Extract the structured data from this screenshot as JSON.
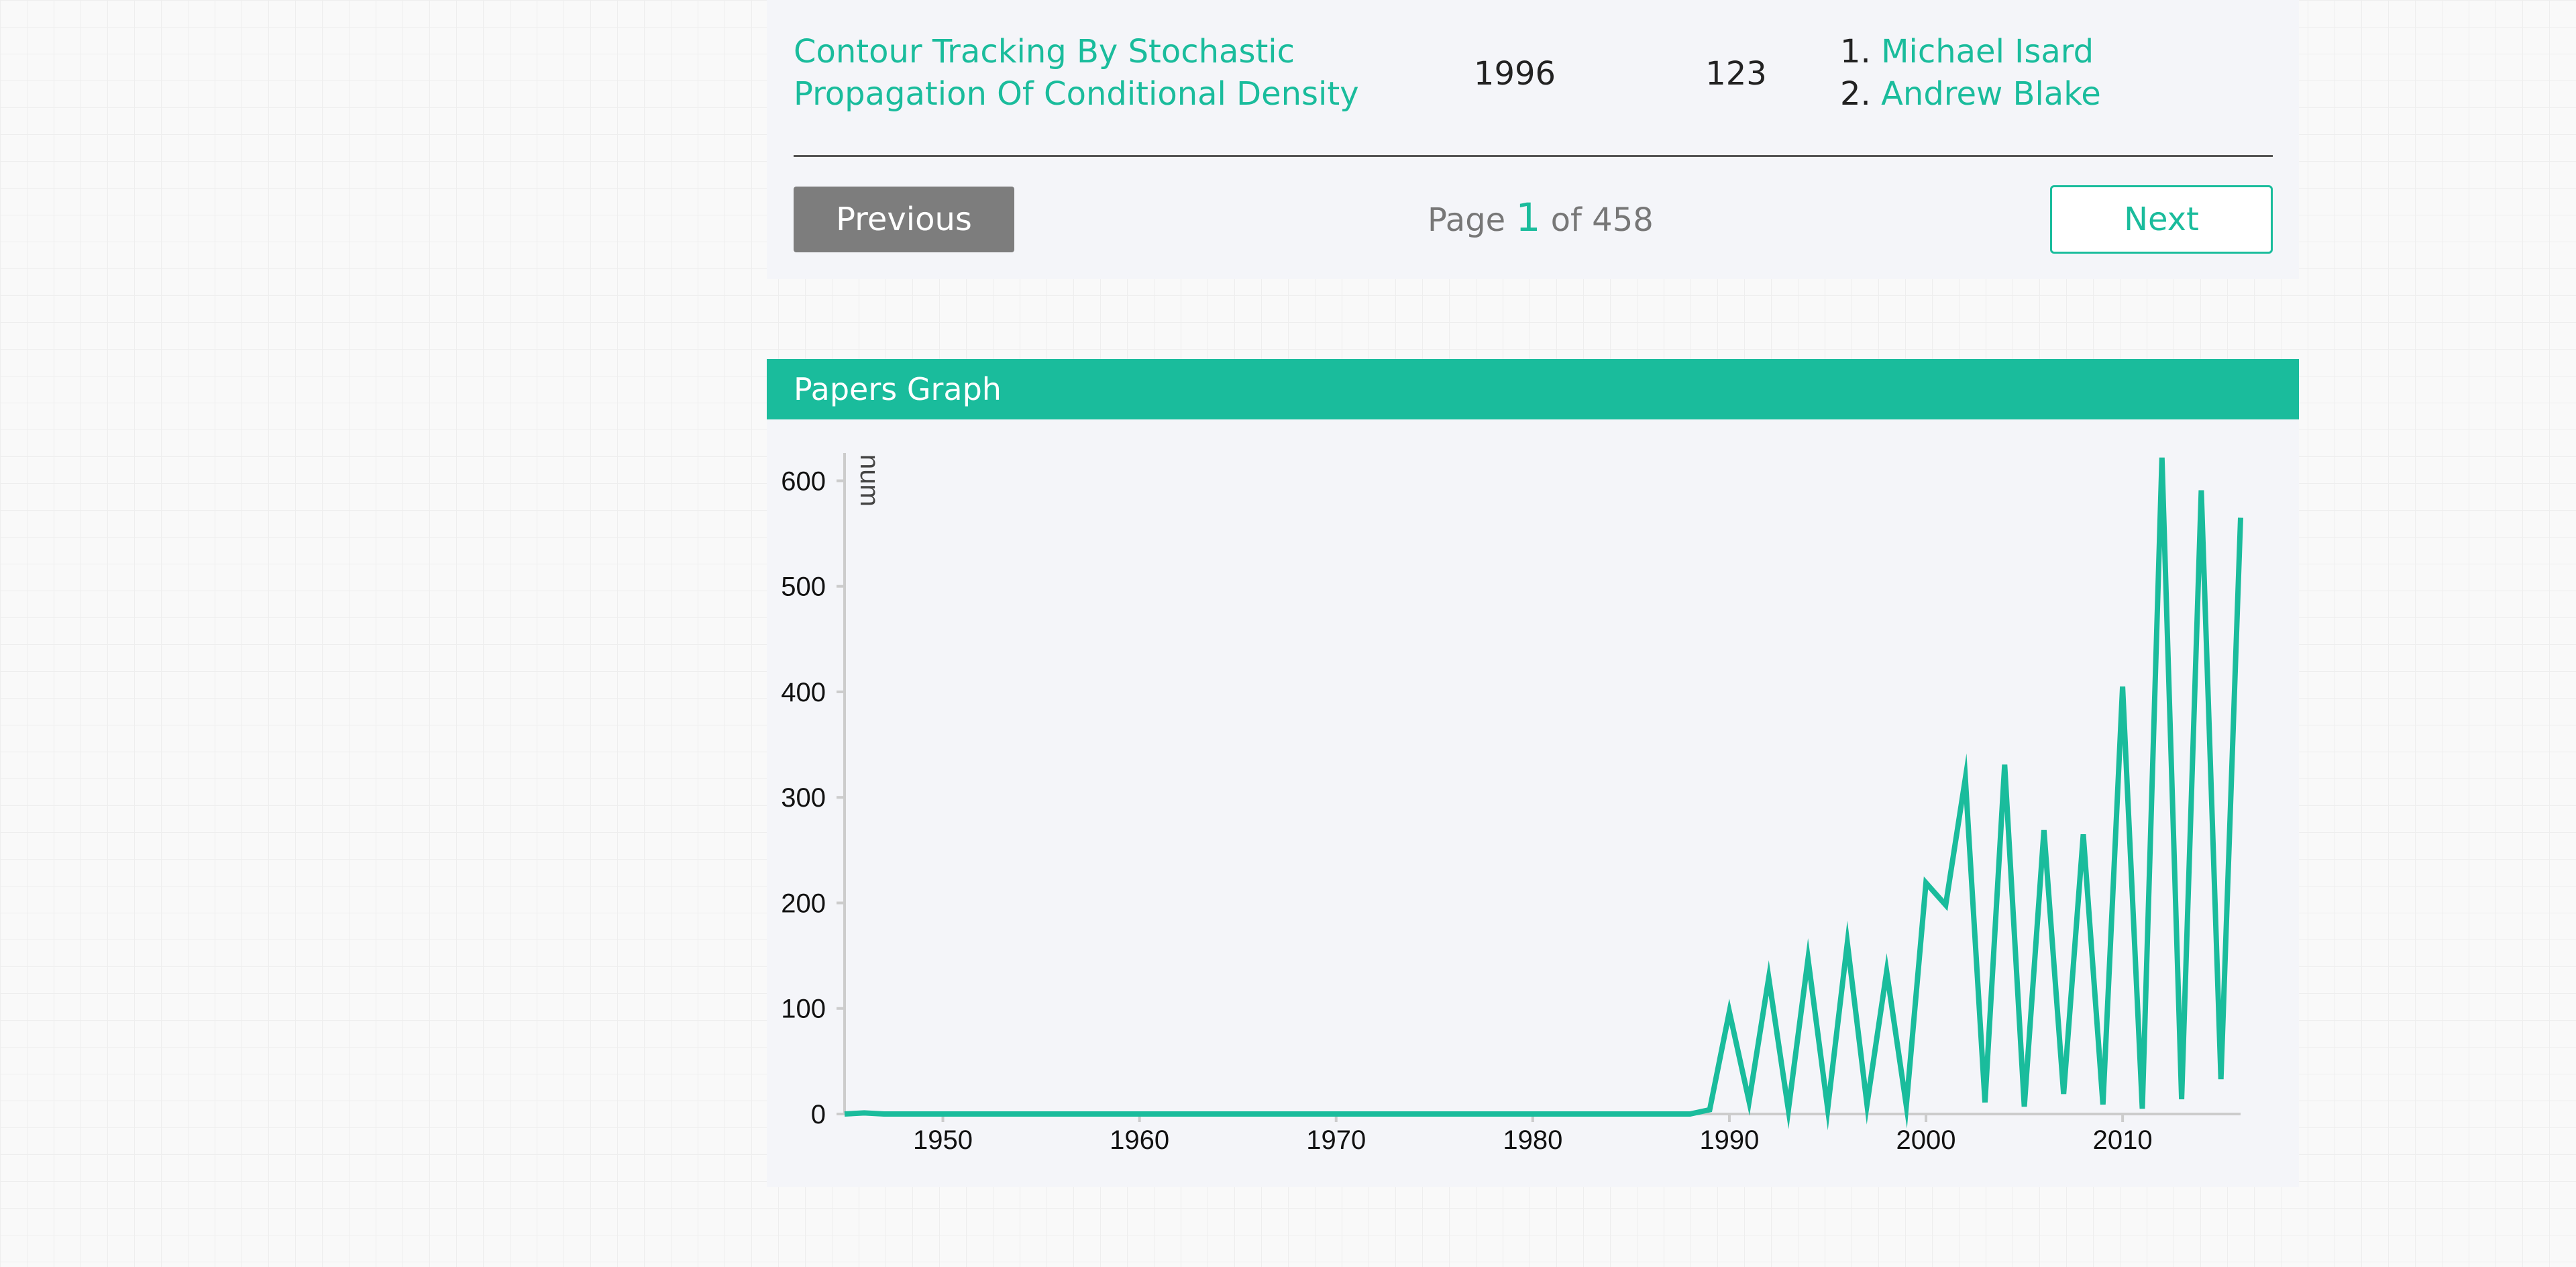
{
  "table": {
    "row": {
      "title": "Contour Tracking By Stochastic Propagation Of Conditional Density",
      "year": "1996",
      "citations": "123",
      "authors": [
        {
          "num": "1.",
          "name": "Michael Isard"
        },
        {
          "num": "2.",
          "name": "Andrew Blake"
        }
      ]
    }
  },
  "pager": {
    "prev_label": "Previous",
    "page_prefix": "Page",
    "current_page": "1",
    "page_suffix": "of 458",
    "next_label": "Next"
  },
  "graph": {
    "header": "Papers Graph"
  },
  "colors": {
    "accent": "#1abc9c",
    "disabled_button": "#7d7d7d"
  },
  "chart_data": {
    "type": "line",
    "title": "",
    "xlabel": "",
    "ylabel": "num",
    "xlim": [
      1945,
      2016
    ],
    "ylim": [
      0,
      620
    ],
    "x_ticks": [
      1950,
      1960,
      1970,
      1980,
      1990,
      2000,
      2010
    ],
    "y_ticks": [
      0,
      100,
      200,
      300,
      400,
      500,
      600
    ],
    "grid": false,
    "legend": "none",
    "x": [
      1945,
      1946,
      1947,
      1948,
      1949,
      1950,
      1951,
      1952,
      1953,
      1954,
      1955,
      1956,
      1957,
      1958,
      1959,
      1960,
      1961,
      1962,
      1963,
      1964,
      1965,
      1966,
      1967,
      1968,
      1969,
      1970,
      1971,
      1972,
      1973,
      1974,
      1975,
      1976,
      1977,
      1978,
      1979,
      1980,
      1981,
      1982,
      1983,
      1984,
      1985,
      1986,
      1987,
      1988,
      1989,
      1990,
      1991,
      1992,
      1993,
      1994,
      1995,
      1996,
      1997,
      1998,
      1999,
      2000,
      2001,
      2002,
      2003,
      2004,
      2005,
      2006,
      2007,
      2008,
      2009,
      2010,
      2011,
      2012,
      2013,
      2014,
      2015,
      2016
    ],
    "y": [
      0,
      1,
      0,
      0,
      0,
      0,
      0,
      0,
      0,
      0,
      0,
      0,
      0,
      0,
      0,
      0,
      0,
      0,
      0,
      0,
      0,
      0,
      0,
      0,
      0,
      0,
      0,
      0,
      0,
      0,
      0,
      0,
      0,
      0,
      0,
      0,
      0,
      0,
      0,
      0,
      0,
      0,
      0,
      0,
      4,
      97,
      12,
      129,
      4,
      147,
      5,
      162,
      9,
      135,
      8,
      219,
      198,
      318,
      11,
      331,
      7,
      269,
      19,
      265,
      9,
      405,
      5,
      622,
      14,
      591,
      33,
      565
    ]
  }
}
